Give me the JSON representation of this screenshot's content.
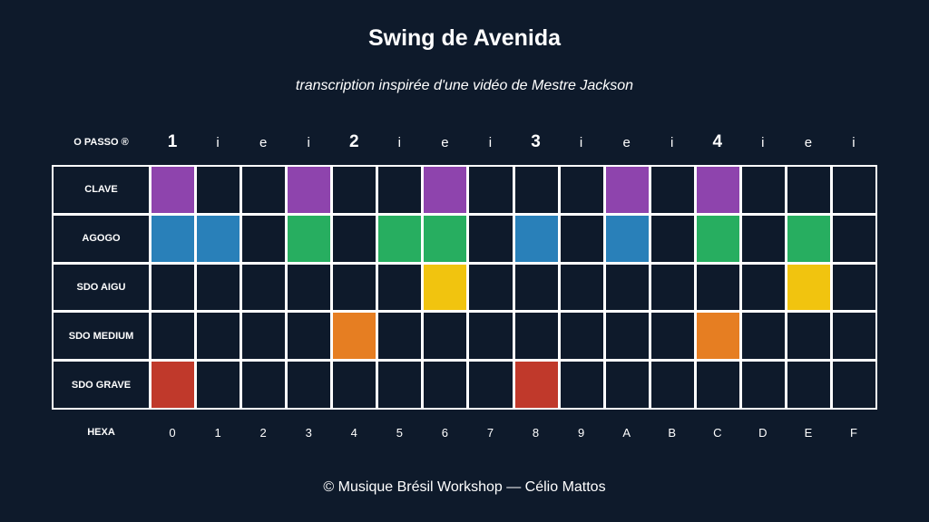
{
  "title": "Swing de Avenida",
  "subtitle": "transcription inspirée d'une vidéo de Mestre Jackson",
  "footer": "© Musique Brésil Workshop — Célio Mattos",
  "header_label": "O PASSO ®",
  "beats": [
    "1",
    "i",
    "e",
    "i",
    "2",
    "i",
    "e",
    "i",
    "3",
    "i",
    "e",
    "i",
    "4",
    "i",
    "e",
    "i"
  ],
  "hexa_label": "HEXA",
  "hexa": [
    "0",
    "1",
    "2",
    "3",
    "4",
    "5",
    "6",
    "7",
    "8",
    "9",
    "A",
    "B",
    "C",
    "D",
    "E",
    "F"
  ],
  "colors": {
    "background": "#0e1a2b",
    "grid_line": "#ffffff",
    "purple": "#8e44ad",
    "blue": "#2980b9",
    "green": "#27ae60",
    "yellow": "#f1c40f",
    "orange": "#e67e22",
    "red": "#c0392b"
  },
  "rows": [
    {
      "label": "CLAVE",
      "cells": [
        "purple",
        null,
        null,
        "purple",
        null,
        null,
        "purple",
        null,
        null,
        null,
        "purple",
        null,
        "purple",
        null,
        null,
        null
      ]
    },
    {
      "label": "AGOGO",
      "cells": [
        "blue",
        "blue",
        null,
        "green",
        null,
        "green",
        "green",
        null,
        "blue",
        null,
        "blue",
        null,
        "green",
        null,
        "green",
        null
      ]
    },
    {
      "label": "SDO AIGU",
      "cells": [
        null,
        null,
        null,
        null,
        null,
        null,
        "yellow",
        null,
        null,
        null,
        null,
        null,
        null,
        null,
        "yellow",
        null
      ]
    },
    {
      "label": "SDO MEDIUM",
      "cells": [
        null,
        null,
        null,
        null,
        "orange",
        null,
        null,
        null,
        null,
        null,
        null,
        null,
        "orange",
        null,
        null,
        null
      ]
    },
    {
      "label": "SDO GRAVE",
      "cells": [
        "red",
        null,
        null,
        null,
        null,
        null,
        null,
        null,
        "red",
        null,
        null,
        null,
        null,
        null,
        null,
        null
      ]
    }
  ]
}
